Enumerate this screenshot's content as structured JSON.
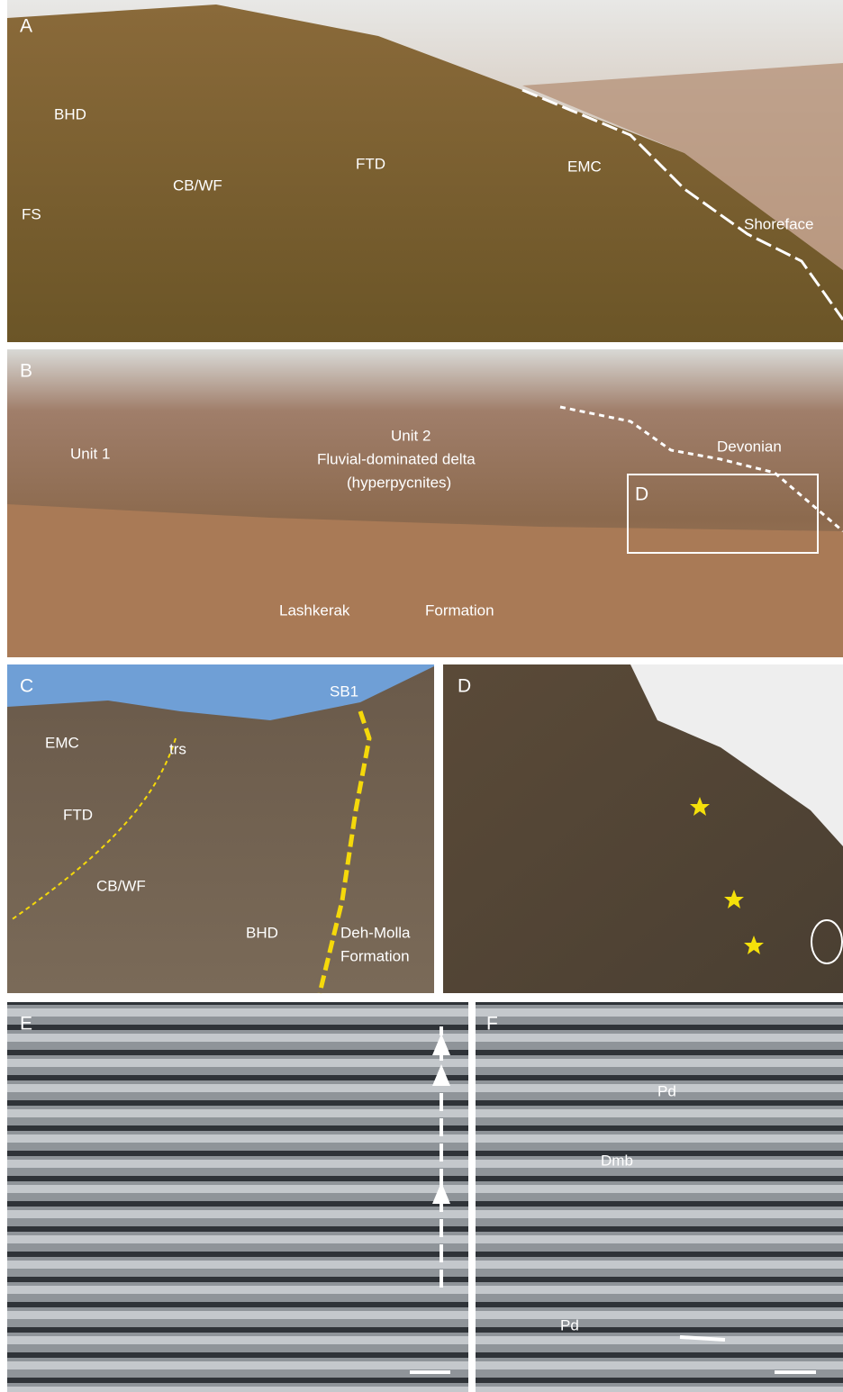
{
  "panels": [
    {
      "letter": "A",
      "labels": [
        "BHD",
        "CB/WF",
        "FS",
        "FTD",
        "EMC",
        "Shoreface"
      ]
    },
    {
      "letter": "B",
      "labels": [
        "Unit 1",
        "Unit 2",
        "Fluvial-dominated delta",
        "(hyperpycnites)",
        "Devonian",
        "D",
        "Lashkerak",
        "Formation"
      ]
    },
    {
      "letter": "C",
      "labels": [
        "EMC",
        "trs",
        "FTD",
        "CB/WF",
        "SB1",
        "BHD",
        "Deh-Molla",
        "Formation"
      ]
    },
    {
      "letter": "D"
    },
    {
      "letter": "E"
    },
    {
      "letter": "F",
      "labels": [
        "Pd",
        "Dmb",
        "Pd"
      ]
    }
  ]
}
